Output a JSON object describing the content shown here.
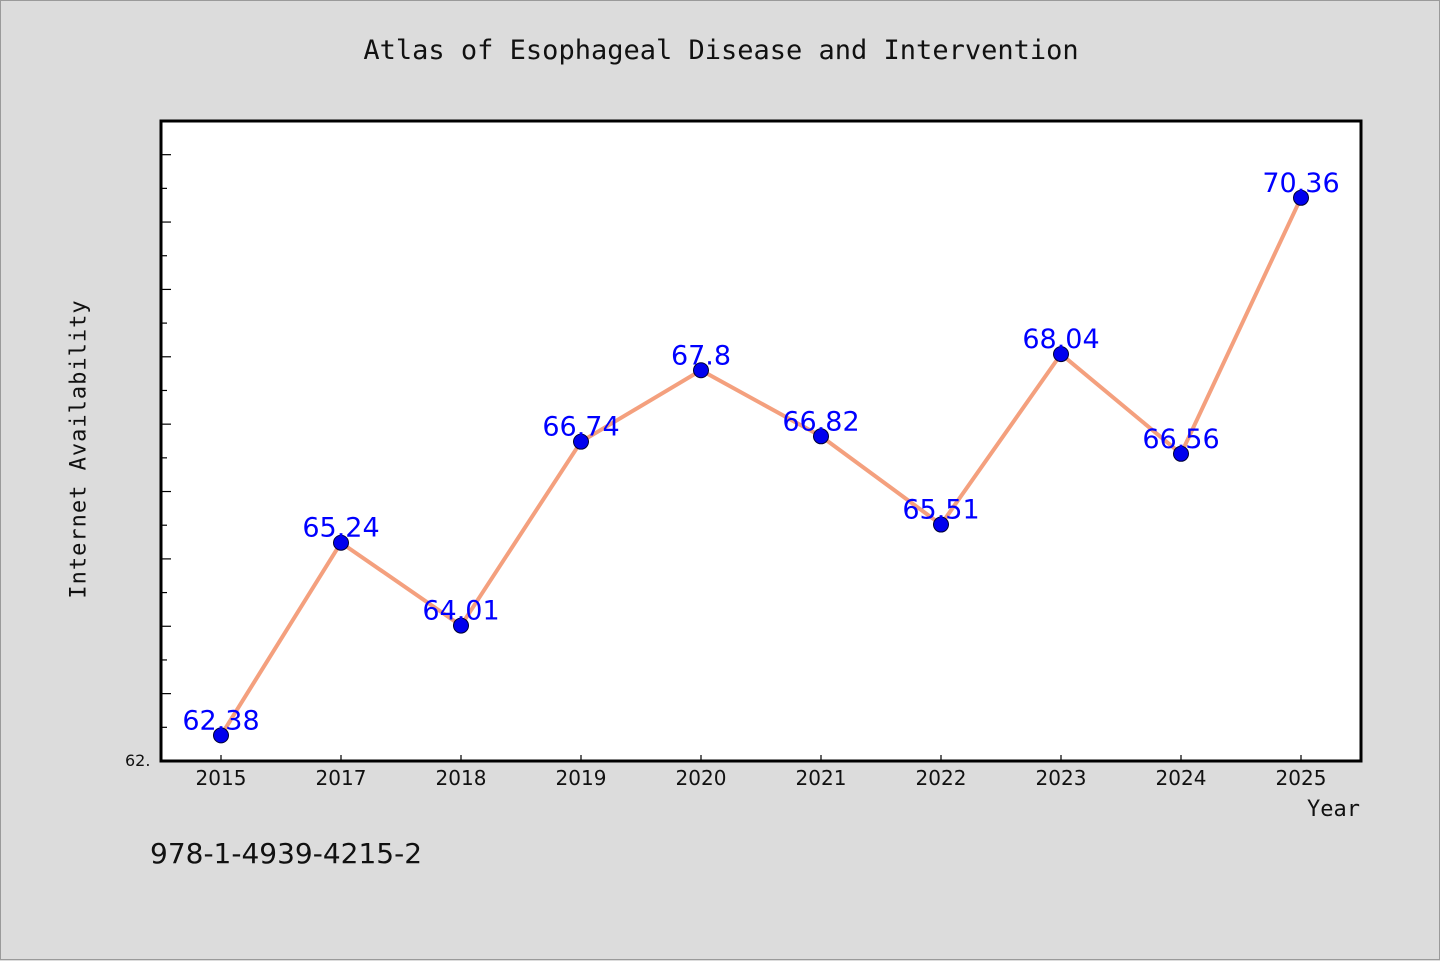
{
  "title": "Atlas of Esophageal Disease and Intervention",
  "ylabel": "Internet Availability",
  "xlabel": "Year",
  "isbn": "978-1-4939-4215-2",
  "y_min_label": "62.",
  "colors": {
    "background": "#dcdcdc",
    "plot_area": "#ffffff",
    "line": "#f4a07e",
    "marker": "#0000ee",
    "data_label": "#0000ff"
  },
  "chart_data": {
    "type": "line",
    "title": "Atlas of Esophageal Disease and Intervention",
    "xlabel": "Year",
    "ylabel": "Internet Availability",
    "categories": [
      "2015",
      "2017",
      "2018",
      "2019",
      "2020",
      "2021",
      "2022",
      "2023",
      "2024",
      "2025"
    ],
    "series": [
      {
        "values": [
          62.38,
          65.24,
          64.01,
          66.74,
          67.8,
          66.82,
          65.51,
          68.04,
          66.56,
          70.36
        ],
        "labels": [
          "62.38",
          "65.24",
          "64.01",
          "66.74",
          "67.8",
          "66.82",
          "65.51",
          "68.04",
          "66.56",
          "70.36"
        ]
      }
    ],
    "ylim": [
      62,
      71.5
    ],
    "grid": false,
    "legend": "none"
  }
}
